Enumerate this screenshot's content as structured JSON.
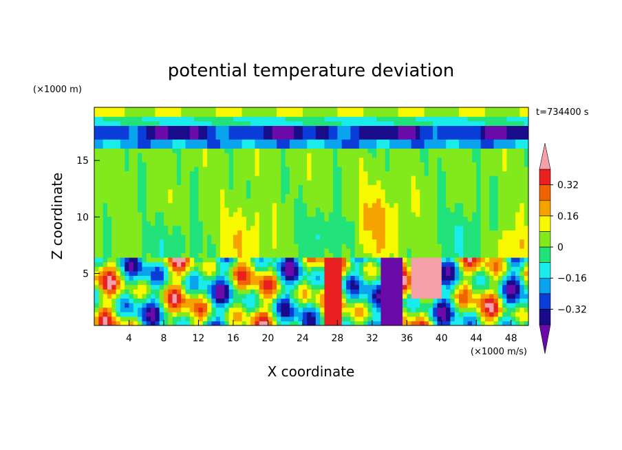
{
  "chart_data": {
    "type": "heatmap",
    "title": "potential temperature deviation",
    "xlabel": "X coordinate",
    "ylabel": "Z coordinate",
    "x_unit": "(×1000 m/s)",
    "y_unit": "(×1000 m)",
    "time_label": "t=734400 s",
    "xlim": [
      0,
      50
    ],
    "ylim": [
      0.4,
      19.7
    ],
    "x_ticks": [
      4,
      8,
      12,
      16,
      20,
      24,
      28,
      32,
      36,
      40,
      44,
      48
    ],
    "y_ticks": [
      5,
      10,
      15
    ],
    "colorbar": {
      "levels": [
        -0.4,
        -0.32,
        -0.24,
        -0.16,
        -0.08,
        0,
        0.08,
        0.16,
        0.24,
        0.32,
        0.4
      ],
      "tick_labels": [
        "0.32",
        "0.16",
        "0",
        "−0.16",
        "−0.32"
      ],
      "tick_values": [
        0.32,
        0.16,
        0,
        -0.16,
        -0.32
      ],
      "colors": [
        "#6a0aa8",
        "#190c8a",
        "#0a3dd8",
        "#0aa4ee",
        "#19ecea",
        "#22e27a",
        "#82ea1c",
        "#f8f800",
        "#f6a300",
        "#ef6400",
        "#e82020",
        "#f5a0a8"
      ]
    }
  }
}
